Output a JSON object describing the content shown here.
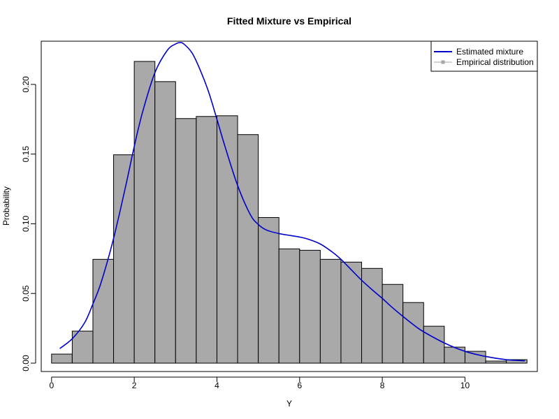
{
  "chart_data": {
    "type": "bar",
    "title": "Fitted Mixture vs Empirical",
    "xlabel": "Y",
    "ylabel": "Probability",
    "xlim": [
      -0.25,
      11.75
    ],
    "ylim": [
      -0.006,
      0.231
    ],
    "x_ticks": [
      0,
      2,
      4,
      6,
      8,
      10
    ],
    "x_tick_labels": [
      "0",
      "2",
      "4",
      "6",
      "8",
      "10"
    ],
    "y_ticks": [
      0.0,
      0.05,
      0.1,
      0.15,
      0.2
    ],
    "y_tick_labels": [
      "0.00",
      "0.05",
      "0.10",
      "0.15",
      "0.20"
    ],
    "legend": {
      "position": "top-right",
      "items": [
        {
          "label": "Estimated mixture",
          "color": "#0000cc",
          "style": "line"
        },
        {
          "label": "Empirical distribution",
          "color": "#a6a6a6",
          "style": "line-square"
        }
      ]
    },
    "series": [
      {
        "name": "Empirical distribution",
        "type": "bar",
        "bar_color": "#a9a9a9",
        "edge_color": "#000000",
        "bins": [
          {
            "x0": 0.0,
            "x1": 0.5,
            "value": 0.0065
          },
          {
            "x0": 0.5,
            "x1": 1.0,
            "value": 0.023
          },
          {
            "x0": 1.0,
            "x1": 1.5,
            "value": 0.0745
          },
          {
            "x0": 1.5,
            "x1": 2.0,
            "value": 0.1495
          },
          {
            "x0": 2.0,
            "x1": 2.5,
            "value": 0.2165
          },
          {
            "x0": 2.5,
            "x1": 3.0,
            "value": 0.202
          },
          {
            "x0": 3.0,
            "x1": 3.5,
            "value": 0.1755
          },
          {
            "x0": 3.5,
            "x1": 4.0,
            "value": 0.177
          },
          {
            "x0": 4.0,
            "x1": 4.5,
            "value": 0.1775
          },
          {
            "x0": 4.5,
            "x1": 5.0,
            "value": 0.164
          },
          {
            "x0": 5.0,
            "x1": 5.5,
            "value": 0.1045
          },
          {
            "x0": 5.5,
            "x1": 6.0,
            "value": 0.082
          },
          {
            "x0": 6.0,
            "x1": 6.5,
            "value": 0.081
          },
          {
            "x0": 6.5,
            "x1": 7.0,
            "value": 0.0745
          },
          {
            "x0": 7.0,
            "x1": 7.5,
            "value": 0.0725
          },
          {
            "x0": 7.5,
            "x1": 8.0,
            "value": 0.068
          },
          {
            "x0": 8.0,
            "x1": 8.5,
            "value": 0.0565
          },
          {
            "x0": 8.5,
            "x1": 9.0,
            "value": 0.0435
          },
          {
            "x0": 9.0,
            "x1": 9.5,
            "value": 0.0265
          },
          {
            "x0": 9.5,
            "x1": 10.0,
            "value": 0.0115
          },
          {
            "x0": 10.0,
            "x1": 10.5,
            "value": 0.0085
          },
          {
            "x0": 10.5,
            "x1": 11.0,
            "value": 0.0015
          },
          {
            "x0": 11.0,
            "x1": 11.5,
            "value": 0.0025
          }
        ]
      },
      {
        "name": "Estimated mixture",
        "type": "line",
        "color": "#0000cc",
        "x": [
          0.2,
          0.5,
          0.8,
          1.0,
          1.2,
          1.5,
          1.8,
          2.0,
          2.2,
          2.5,
          2.8,
          3.0,
          3.1,
          3.2,
          3.4,
          3.6,
          3.8,
          4.0,
          4.2,
          4.5,
          4.8,
          5.0,
          5.2,
          5.5,
          5.8,
          6.0,
          6.2,
          6.5,
          6.8,
          7.0,
          7.2,
          7.5,
          7.8,
          8.0,
          8.2,
          8.5,
          8.8,
          9.0,
          9.5,
          10.0,
          10.5,
          11.0,
          11.45
        ],
        "y": [
          0.0105,
          0.0175,
          0.029,
          0.0425,
          0.058,
          0.0895,
          0.128,
          0.1555,
          0.18,
          0.2085,
          0.2245,
          0.229,
          0.23,
          0.229,
          0.2225,
          0.21,
          0.1945,
          0.175,
          0.155,
          0.1275,
          0.107,
          0.0995,
          0.0955,
          0.093,
          0.0915,
          0.0905,
          0.089,
          0.0855,
          0.0795,
          0.0745,
          0.0685,
          0.0595,
          0.0515,
          0.0465,
          0.041,
          0.0335,
          0.0265,
          0.0225,
          0.0145,
          0.0085,
          0.0048,
          0.0025,
          0.0017
        ]
      }
    ]
  }
}
